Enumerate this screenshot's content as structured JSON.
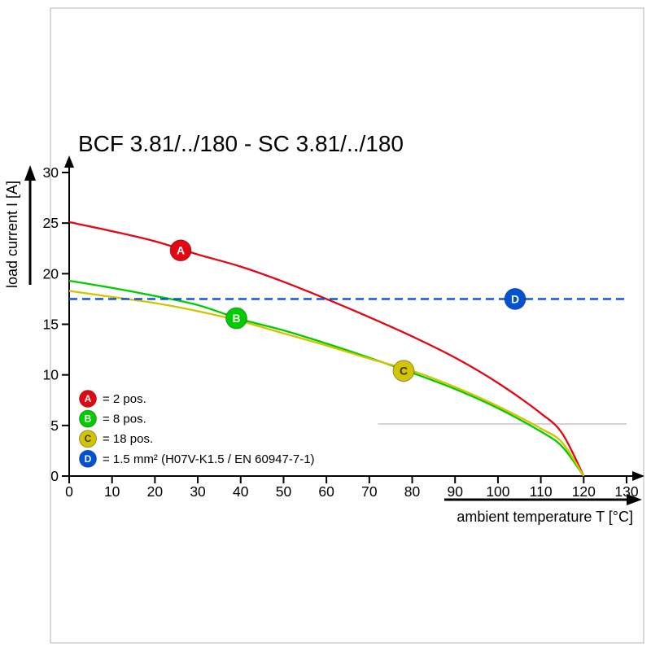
{
  "chart_data": {
    "type": "line",
    "title": "BCF 3.81/../180 - SC 3.81/../180",
    "xlabel": "ambient temperature T [°C]",
    "ylabel": "load current I [A]",
    "xlim": [
      0,
      130
    ],
    "ylim": [
      0,
      30
    ],
    "x_ticks": [
      0,
      10,
      20,
      30,
      40,
      50,
      60,
      70,
      80,
      90,
      100,
      110,
      120,
      130
    ],
    "y_ticks": [
      0,
      5,
      10,
      15,
      20,
      25,
      30
    ],
    "grid": false,
    "legend_position": "bottom-left",
    "artifact_line": {
      "y": 5.15,
      "x1": 72,
      "x2": 130,
      "color": "#c6c6c6"
    },
    "series": [
      {
        "id": "A",
        "label": "= 2 pos.",
        "color": "#e30613",
        "letter_color": "#ffffff",
        "style": "solid",
        "marker": {
          "x": 26,
          "y": 22.3
        },
        "points": [
          [
            0,
            25.1
          ],
          [
            10,
            24.2
          ],
          [
            20,
            23.2
          ],
          [
            30,
            21.9
          ],
          [
            40,
            20.7
          ],
          [
            50,
            19.2
          ],
          [
            60,
            17.5
          ],
          [
            70,
            15.7
          ],
          [
            80,
            13.8
          ],
          [
            90,
            11.7
          ],
          [
            100,
            9.2
          ],
          [
            110,
            6.2
          ],
          [
            115,
            4.2
          ],
          [
            120,
            0
          ]
        ]
      },
      {
        "id": "B",
        "label": "= 8 pos.",
        "color": "#00cc00",
        "letter_color": "#ffffff",
        "style": "solid",
        "marker": {
          "x": 39,
          "y": 15.6
        },
        "points": [
          [
            0,
            19.3
          ],
          [
            10,
            18.6
          ],
          [
            20,
            17.8
          ],
          [
            30,
            16.9
          ],
          [
            40,
            15.5
          ],
          [
            50,
            14.4
          ],
          [
            60,
            13.1
          ],
          [
            70,
            11.7
          ],
          [
            80,
            10.2
          ],
          [
            90,
            8.6
          ],
          [
            100,
            6.7
          ],
          [
            110,
            4.4
          ],
          [
            115,
            2.9
          ],
          [
            120,
            0
          ]
        ]
      },
      {
        "id": "C",
        "label": "= 18 pos.",
        "color": "#d2c400",
        "letter_color": "#3d3800",
        "style": "solid",
        "marker": {
          "x": 78,
          "y": 10.4
        },
        "points": [
          [
            0,
            18.3
          ],
          [
            10,
            17.7
          ],
          [
            20,
            17.1
          ],
          [
            30,
            16.3
          ],
          [
            40,
            15.3
          ],
          [
            50,
            14.1
          ],
          [
            60,
            12.9
          ],
          [
            70,
            11.6
          ],
          [
            80,
            10.4
          ],
          [
            90,
            8.8
          ],
          [
            100,
            6.9
          ],
          [
            110,
            4.7
          ],
          [
            115,
            3.3
          ],
          [
            120,
            0
          ]
        ]
      },
      {
        "id": "D",
        "label": "= 1.5 mm² (H07V-K1.5 / EN 60947-7-1)",
        "color": "#0052d4",
        "letter_color": "#ffffff",
        "style": "dashed",
        "marker": {
          "x": 104,
          "y": 17.5
        },
        "points": [
          [
            0,
            17.5
          ],
          [
            130,
            17.5
          ]
        ]
      }
    ]
  }
}
